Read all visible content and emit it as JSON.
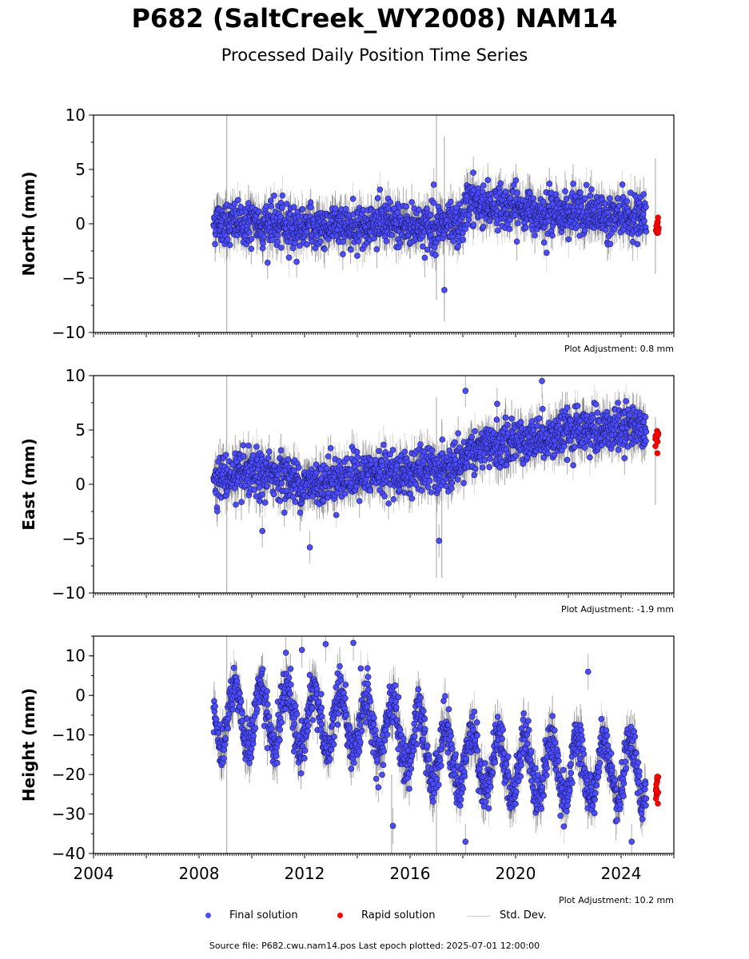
{
  "title": "P682 (SaltCreek_WY2008) NAM14",
  "subtitle": "Processed Daily Position Time Series",
  "legend": {
    "final_label": "Final solution",
    "rapid_label": "Rapid solution",
    "std_label": "Std. Dev."
  },
  "footer": "Source file: P682.cwu.nam14.pos  Last epoch plotted: 2025-07-01 12:00:00",
  "colors": {
    "final": "#4b4bff",
    "final_edge": "#1a1a60",
    "rapid": "#ff0000",
    "std": "#b0b0b0",
    "std_dense": "#555555"
  },
  "chart_data": [
    {
      "type": "scatter",
      "ylabel": "North (mm)",
      "ylim": [
        -10,
        10
      ],
      "yticks": [
        -10,
        -5,
        0,
        5,
        10
      ],
      "xlim": [
        2004,
        2026
      ],
      "adjustment_label": "Plot Adjustment: 0.8 mm",
      "series": [
        {
          "name": "Final solution",
          "x_range": [
            2008.55,
            2024.95
          ],
          "trend": [
            [
              2008.55,
              0.2
            ],
            [
              2012.0,
              -0.3
            ],
            [
              2015.0,
              0.0
            ],
            [
              2017.9,
              -0.4
            ],
            [
              2018.2,
              2.0
            ],
            [
              2020.5,
              1.2
            ],
            [
              2024.95,
              0.5
            ]
          ],
          "scatter_sd": 1.0,
          "outliers": [
            [
              2017.3,
              -6.1
            ],
            [
              2016.9,
              3.6
            ],
            [
              2011.7,
              -3.5
            ],
            [
              2018.4,
              4.7
            ]
          ]
        },
        {
          "name": "Rapid solution",
          "x_range": [
            2025.3,
            2025.42
          ],
          "y_range": [
            -1.3,
            0.6
          ]
        }
      ],
      "spikes": [
        [
          2009.05,
          -10,
          10
        ],
        [
          2017.0,
          -7,
          10
        ],
        [
          2017.3,
          -9,
          8
        ],
        [
          2025.3,
          -4.6,
          6.0
        ]
      ]
    },
    {
      "type": "scatter",
      "ylabel": "East (mm)",
      "ylim": [
        -10,
        10
      ],
      "yticks": [
        -10,
        -5,
        0,
        5,
        10
      ],
      "xlim": [
        2004,
        2026
      ],
      "adjustment_label": "Plot Adjustment: -1.9 mm",
      "series": [
        {
          "name": "Final solution",
          "x_range": [
            2008.55,
            2024.95
          ],
          "trend": [
            [
              2008.55,
              0.5
            ],
            [
              2011.0,
              1.0
            ],
            [
              2012.0,
              -0.2
            ],
            [
              2013.0,
              0.5
            ],
            [
              2015.0,
              1.0
            ],
            [
              2017.9,
              1.4
            ],
            [
              2018.2,
              3.0
            ],
            [
              2020.5,
              4.2
            ],
            [
              2024.95,
              5.5
            ]
          ],
          "scatter_sd": 1.0,
          "outliers": [
            [
              2012.2,
              -5.8
            ],
            [
              2017.1,
              -5.2
            ],
            [
              2018.1,
              8.6
            ],
            [
              2021.0,
              9.5
            ],
            [
              2010.4,
              -4.3
            ],
            [
              2019.3,
              7.4
            ]
          ]
        },
        {
          "name": "Rapid solution",
          "x_range": [
            2025.3,
            2025.42
          ],
          "y_range": [
            2.8,
            5.0
          ]
        }
      ],
      "spikes": [
        [
          2009.05,
          -10,
          10
        ],
        [
          2017.0,
          -8.6,
          8
        ],
        [
          2017.2,
          -8.6,
          6
        ],
        [
          2025.3,
          -1.9,
          6.2
        ]
      ]
    },
    {
      "type": "scatter",
      "ylabel": "Height (mm)",
      "ylim": [
        -40,
        15
      ],
      "yticks": [
        -40,
        -30,
        -20,
        -10,
        0,
        10
      ],
      "xlim": [
        2004,
        2026
      ],
      "xticks": [
        2004,
        2008,
        2012,
        2016,
        2020,
        2024
      ],
      "adjustment_label": "Plot Adjustment: 10.2 mm",
      "series": [
        {
          "name": "Final solution",
          "x_range": [
            2008.55,
            2024.95
          ],
          "trend": [
            [
              2008.55,
              -5.0
            ],
            [
              2012.0,
              -6.0
            ],
            [
              2015.0,
              -8.0
            ],
            [
              2017.0,
              -15.0
            ],
            [
              2020.0,
              -18.0
            ],
            [
              2024.95,
              -20.0
            ]
          ],
          "seasonal_amplitude": 7.5,
          "scatter_sd": 3.0,
          "outliers": [
            [
              2013.85,
              13.3
            ],
            [
              2011.9,
              11.5
            ],
            [
              2012.8,
              13.0
            ],
            [
              2018.1,
              -37.0
            ],
            [
              2015.35,
              -33.0
            ],
            [
              2024.4,
              -37.0
            ],
            [
              2022.75,
              6.0
            ]
          ]
        },
        {
          "name": "Rapid solution",
          "x_range": [
            2025.3,
            2025.42
          ],
          "y_range": [
            -28.0,
            -19.5
          ]
        }
      ],
      "spikes": [
        [
          2009.05,
          -40,
          15
        ],
        [
          2015.3,
          -40,
          -20
        ],
        [
          2017.0,
          -40,
          -25
        ]
      ]
    }
  ]
}
